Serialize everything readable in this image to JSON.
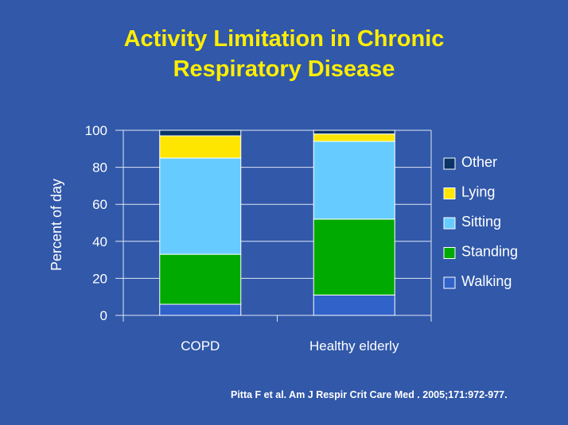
{
  "title_line1": "Activity Limitation in Chronic",
  "title_line2": "Respiratory Disease",
  "citation": "Pitta F et al.  Am J Respir Crit Care Med . 2005;171:972-977.",
  "chart_data": {
    "type": "bar",
    "stacked": true,
    "categories": [
      "COPD",
      "Healthy elderly"
    ],
    "ylabel": "Percent of day",
    "xlabel": "",
    "ylim": [
      0,
      100
    ],
    "yticks": [
      0,
      20,
      40,
      60,
      80,
      100
    ],
    "grid": true,
    "legend_position": "right",
    "series": [
      {
        "name": "Walking",
        "color": "#3062c9",
        "values": [
          6,
          11
        ]
      },
      {
        "name": "Standing",
        "color": "#00aa00",
        "values": [
          27,
          41
        ]
      },
      {
        "name": "Sitting",
        "color": "#66ccff",
        "values": [
          52,
          42
        ]
      },
      {
        "name": "Lying",
        "color": "#ffe600",
        "values": [
          12,
          4
        ]
      },
      {
        "name": "Other",
        "color": "#0a3366",
        "values": [
          3,
          2
        ]
      }
    ]
  }
}
